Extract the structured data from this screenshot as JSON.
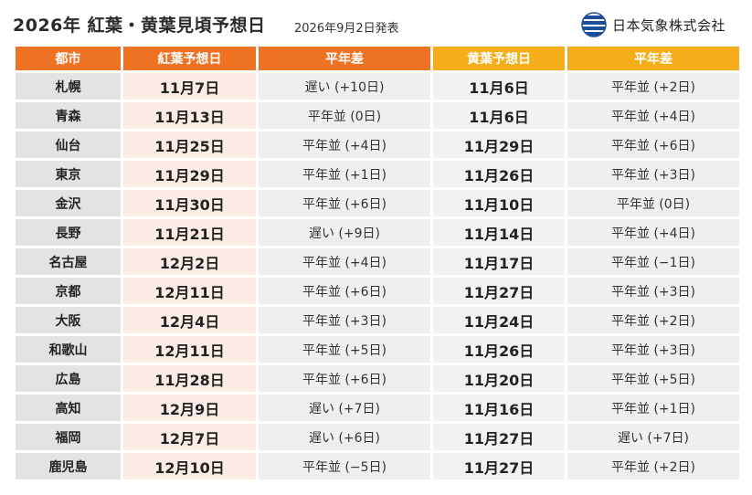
{
  "header": {
    "title": "2026年 紅葉・黄葉見頃予想日",
    "date": "2026年9月2日発表",
    "brand": "日本気象株式会社"
  },
  "colors": {
    "koyo_header": "#ee7223",
    "ko_header": "#f5ad19",
    "logo_blue": "#1d4e9a"
  },
  "table": {
    "columns": [
      "都市",
      "紅葉予想日",
      "平年差",
      "黄葉予想日",
      "平年差"
    ],
    "rows": [
      {
        "city": "札幌",
        "koyo": "11月7日",
        "koyo_diff": "遅い (+10日)",
        "ko": "11月6日",
        "ko_diff": "平年並 (+2日)"
      },
      {
        "city": "青森",
        "koyo": "11月13日",
        "koyo_diff": "平年並 (0日)",
        "ko": "11月6日",
        "ko_diff": "平年並 (+4日)"
      },
      {
        "city": "仙台",
        "koyo": "11月25日",
        "koyo_diff": "平年並 (+4日)",
        "ko": "11月29日",
        "ko_diff": "平年並 (+6日)"
      },
      {
        "city": "東京",
        "koyo": "11月29日",
        "koyo_diff": "平年並 (+1日)",
        "ko": "11月26日",
        "ko_diff": "平年並 (+3日)"
      },
      {
        "city": "金沢",
        "koyo": "11月30日",
        "koyo_diff": "平年並 (+6日)",
        "ko": "11月10日",
        "ko_diff": "平年並 (0日)"
      },
      {
        "city": "長野",
        "koyo": "11月21日",
        "koyo_diff": "遅い (+9日)",
        "ko": "11月14日",
        "ko_diff": "平年並 (+4日)"
      },
      {
        "city": "名古屋",
        "koyo": "12月2日",
        "koyo_diff": "平年並 (+4日)",
        "ko": "11月17日",
        "ko_diff": "平年並 (−1日)"
      },
      {
        "city": "京都",
        "koyo": "12月11日",
        "koyo_diff": "平年並 (+6日)",
        "ko": "11月27日",
        "ko_diff": "平年並 (+3日)"
      },
      {
        "city": "大阪",
        "koyo": "12月4日",
        "koyo_diff": "平年並 (+3日)",
        "ko": "11月24日",
        "ko_diff": "平年並 (+2日)"
      },
      {
        "city": "和歌山",
        "koyo": "12月11日",
        "koyo_diff": "平年並 (+5日)",
        "ko": "11月26日",
        "ko_diff": "平年並 (+3日)"
      },
      {
        "city": "広島",
        "koyo": "11月28日",
        "koyo_diff": "平年並 (+6日)",
        "ko": "11月20日",
        "ko_diff": "平年並 (+5日)"
      },
      {
        "city": "高知",
        "koyo": "12月9日",
        "koyo_diff": "遅い (+7日)",
        "ko": "11月16日",
        "ko_diff": "平年並 (+1日)"
      },
      {
        "city": "福岡",
        "koyo": "12月7日",
        "koyo_diff": "遅い (+6日)",
        "ko": "11月27日",
        "ko_diff": "遅い (+7日)"
      },
      {
        "city": "鹿児島",
        "koyo": "12月10日",
        "koyo_diff": "平年並 (−5日)",
        "ko": "11月27日",
        "ko_diff": "平年並 (+2日)"
      }
    ]
  }
}
